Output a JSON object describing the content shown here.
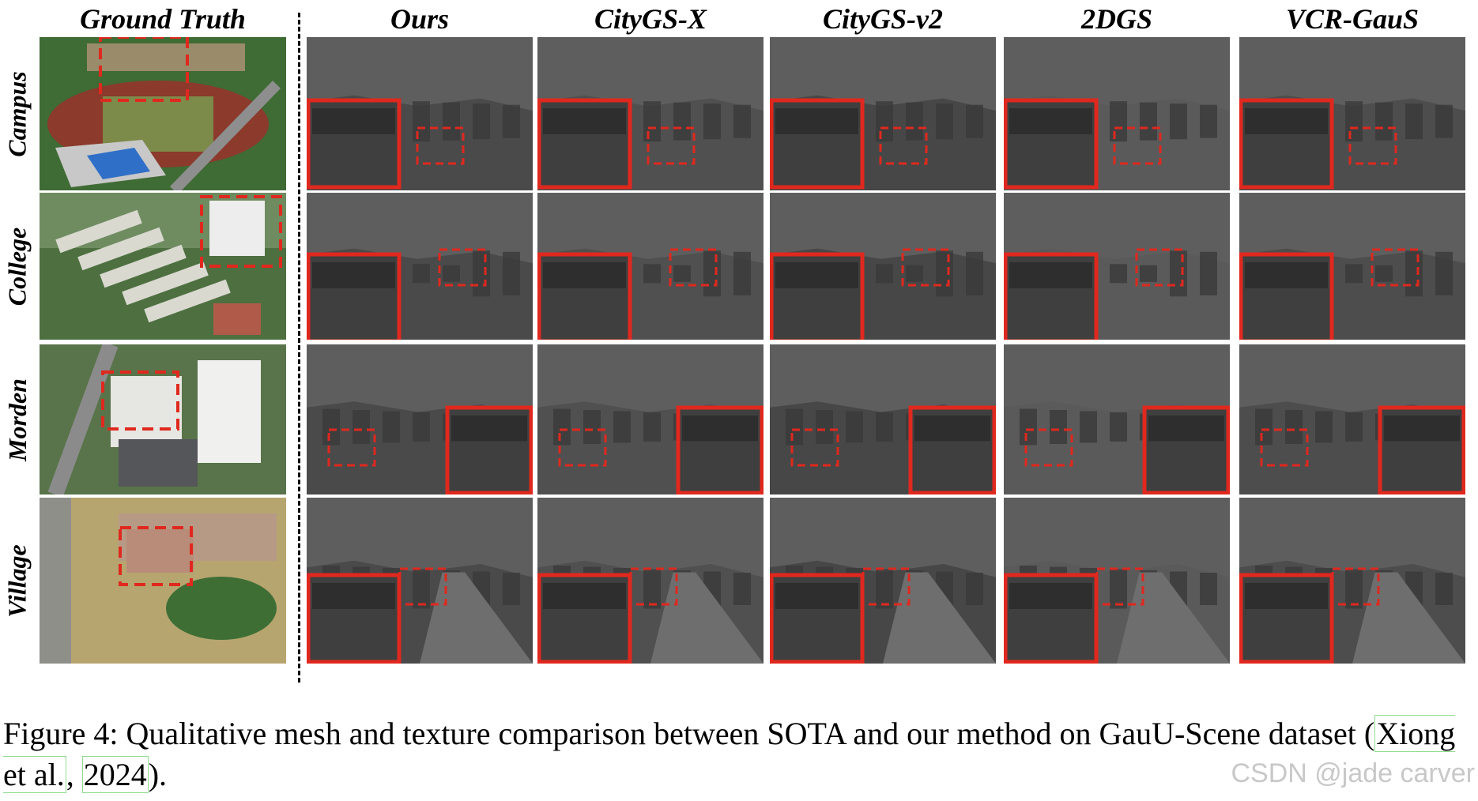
{
  "columns": [
    {
      "label": "Ground Truth"
    },
    {
      "label": "Ours"
    },
    {
      "label": "CityGS-X"
    },
    {
      "label": "CityGS-v2"
    },
    {
      "label": "2DGS"
    },
    {
      "label": "VCR-GauS"
    }
  ],
  "rows": [
    {
      "label": "Campus"
    },
    {
      "label": "College"
    },
    {
      "label": "Morden"
    },
    {
      "label": "Village"
    }
  ],
  "caption": {
    "prefix": "Figure 4: Qualitative mesh and texture comparison between SOTA and our method on GauU-Scene dataset (",
    "cite_author": "Xiong et al.",
    "separator": ", ",
    "cite_year": "2024",
    "suffix": ")."
  },
  "watermark": "CSDN @jade carver",
  "colors": {
    "highlight_box": "#e0281e",
    "render_background": "#5e5e5e"
  }
}
